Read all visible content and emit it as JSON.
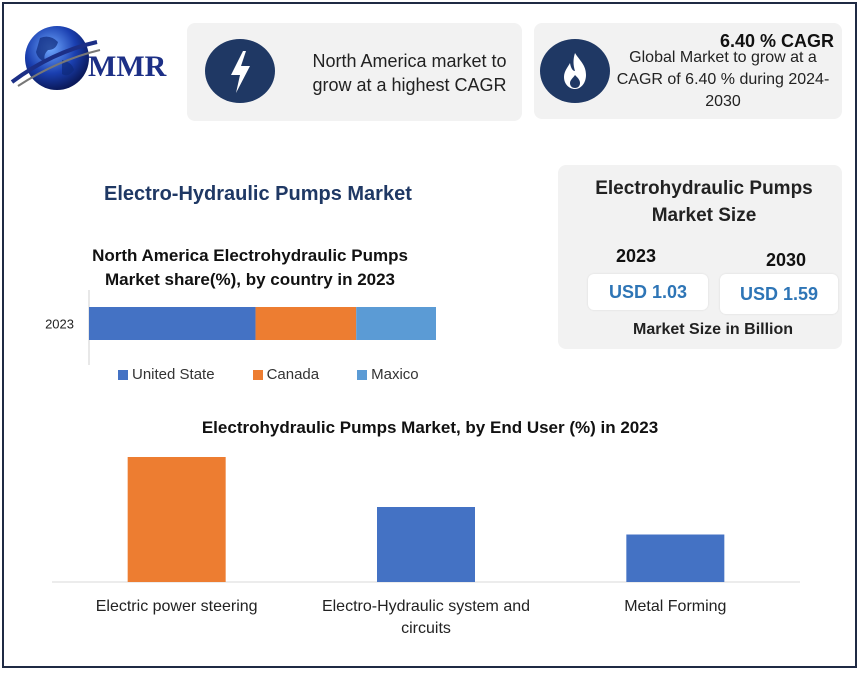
{
  "brand": {
    "logo_text": "MMR"
  },
  "header": {
    "card1": {
      "icon": "lightning-icon",
      "text": "North America market to grow at a highest CAGR"
    },
    "card2": {
      "icon": "flame-icon",
      "headline": "6.40 % CAGR",
      "text": "Global Market to grow at a CAGR of 6.40 % during 2024-2030"
    }
  },
  "section_title": "Electro-Hydraulic Pumps Market",
  "market_size": {
    "title": "Electrohydraulic Pumps Market Size",
    "year_a": "2023",
    "value_a": "USD 1.03",
    "year_b": "2030",
    "value_b": "USD 1.59",
    "footer": "Market Size in Billion"
  },
  "chart_data": [
    {
      "type": "bar",
      "orientation": "horizontal-stacked",
      "title": "North America Electrohydraulic Pumps Market share(%), by country in 2023",
      "categories": [
        "2023"
      ],
      "series": [
        {
          "name": "United State",
          "values": [
            48
          ],
          "color": "#4472c4"
        },
        {
          "name": "Canada",
          "values": [
            29
          ],
          "color": "#ed7d31"
        },
        {
          "name": "Maxico",
          "values": [
            23
          ],
          "color": "#5b9bd5"
        }
      ],
      "legend": "bottom"
    },
    {
      "type": "bar",
      "title": "Electrohydraulic Pumps Market, by End User (%) in 2023",
      "categories": [
        "Electric power steering",
        "Electro-Hydraulic system and circuits",
        "Metal Forming"
      ],
      "values": [
        50,
        30,
        19
      ],
      "colors": [
        "#ed7d31",
        "#4472c4",
        "#4472c4"
      ],
      "ylim": [
        0,
        60
      ]
    }
  ]
}
